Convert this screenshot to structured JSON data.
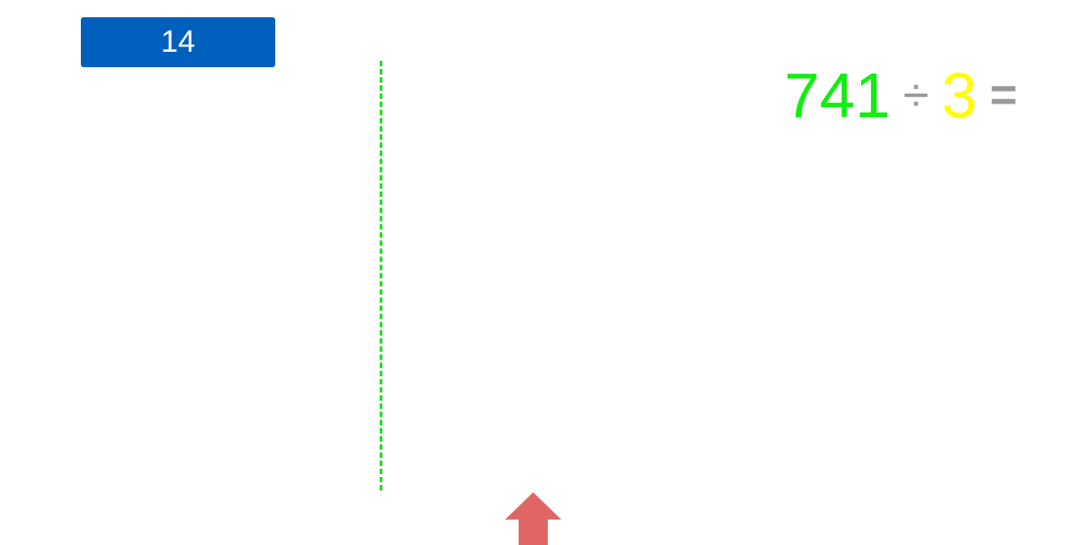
{
  "score": {
    "value": "14",
    "color": "#0060bd"
  },
  "equation": {
    "dividend": "741",
    "operator": "÷",
    "divisor": "3",
    "equals": "=",
    "dividend_color": "#11ee11",
    "divisor_color": "#ffff00",
    "operator_color": "#9a9a9a"
  },
  "controls": {
    "up_arrow_icon": "arrow-up-icon",
    "up_arrow_color": "#e06666"
  },
  "divider": {
    "color": "#22dd22"
  }
}
